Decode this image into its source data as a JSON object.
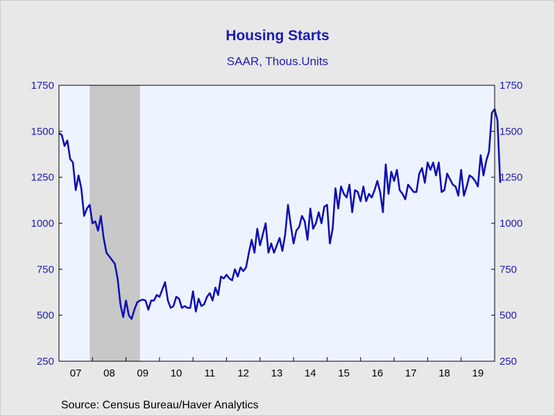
{
  "chart_data": {
    "type": "line",
    "title": "Housing Starts",
    "subtitle": "SAAR, Thous.Units",
    "source": "Source:  Census Bureau/Haver Analytics",
    "ylim": [
      250,
      1750
    ],
    "yticks": [
      250,
      500,
      750,
      1000,
      1250,
      1500,
      1750
    ],
    "xlim": [
      "2007-01",
      "2020-01"
    ],
    "xtick_labels": [
      "07",
      "08",
      "09",
      "10",
      "11",
      "12",
      "13",
      "14",
      "15",
      "16",
      "17",
      "18",
      "19"
    ],
    "recession_shading": {
      "start": "2007-12",
      "end": "2009-06",
      "color": "#c8c8c8"
    },
    "grid": false,
    "colors": {
      "line": "#1010b4",
      "plot_bg": "#eef4ff",
      "recession": "#c8c8c8",
      "text_accent": "#1c1cb4"
    },
    "series": [
      {
        "start": "2007-01",
        "frequency": "monthly",
        "values": [
          1490,
          1480,
          1420,
          1450,
          1350,
          1330,
          1180,
          1260,
          1190,
          1040,
          1080,
          1100,
          1000,
          1010,
          960,
          1040,
          920,
          840,
          820,
          800,
          780,
          700,
          560,
          490,
          580,
          500,
          480,
          530,
          570,
          580,
          585,
          580,
          530,
          580,
          580,
          610,
          600,
          640,
          680,
          580,
          540,
          550,
          600,
          590,
          540,
          550,
          540,
          540,
          630,
          520,
          590,
          550,
          560,
          600,
          620,
          580,
          650,
          610,
          710,
          700,
          720,
          700,
          690,
          750,
          710,
          760,
          740,
          760,
          840,
          910,
          840,
          970,
          880,
          940,
          1000,
          840,
          890,
          840,
          880,
          920,
          850,
          940,
          1100,
          990,
          890,
          960,
          980,
          1040,
          1010,
          910,
          1080,
          970,
          1000,
          1060,
          1000,
          1090,
          1100,
          890,
          970,
          1190,
          1080,
          1200,
          1160,
          1140,
          1210,
          1060,
          1180,
          1170,
          1120,
          1200,
          1120,
          1160,
          1140,
          1180,
          1230,
          1170,
          1060,
          1320,
          1160,
          1280,
          1230,
          1290,
          1180,
          1160,
          1130,
          1210,
          1190,
          1170,
          1170,
          1270,
          1300,
          1220,
          1330,
          1290,
          1330,
          1260,
          1330,
          1170,
          1180,
          1270,
          1240,
          1210,
          1200,
          1150,
          1290,
          1150,
          1200,
          1260,
          1250,
          1230,
          1200,
          1370,
          1260,
          1340,
          1390,
          1600,
          1620,
          1560,
          1220
        ]
      }
    ]
  }
}
